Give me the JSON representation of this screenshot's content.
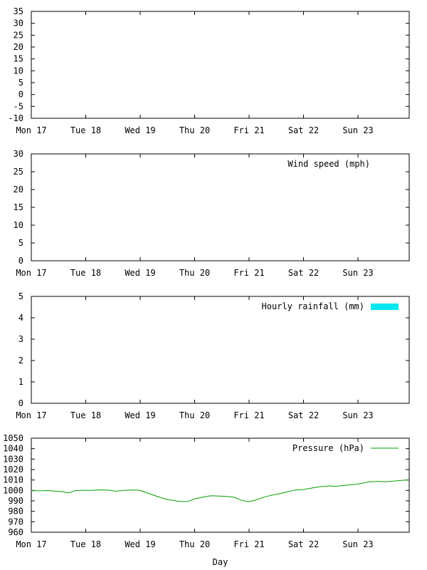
{
  "chart_data": [
    {
      "type": "line",
      "title": "",
      "xlabel": "",
      "ylabel": "",
      "ylim": [
        -10,
        35
      ],
      "yticks": [
        -10,
        -5,
        0,
        5,
        10,
        15,
        20,
        25,
        30,
        35
      ],
      "x_categories": [
        "Mon 17",
        "Tue 18",
        "Wed 19",
        "Thu 20",
        "Fri 21",
        "Sat 22",
        "Sun 23"
      ],
      "series": []
    },
    {
      "type": "line",
      "title": "",
      "xlabel": "",
      "ylabel": "",
      "ylim": [
        0,
        30
      ],
      "yticks": [
        0,
        5,
        10,
        15,
        20,
        25,
        30
      ],
      "x_categories": [
        "Mon 17",
        "Tue 18",
        "Wed 19",
        "Thu 20",
        "Fri 21",
        "Sat 22",
        "Sun 23"
      ],
      "legend_position": "top-right",
      "series": [
        {
          "name": "Wind speed (mph)",
          "color": "",
          "points": []
        }
      ]
    },
    {
      "type": "bar",
      "title": "",
      "xlabel": "",
      "ylabel": "",
      "ylim": [
        0,
        5
      ],
      "yticks": [
        0,
        1,
        2,
        3,
        4,
        5
      ],
      "x_categories": [
        "Mon 17",
        "Tue 18",
        "Wed 19",
        "Thu 20",
        "Fri 21",
        "Sat 22",
        "Sun 23"
      ],
      "legend_position": "top-right",
      "series": [
        {
          "name": "Hourly rainfall (mm)",
          "color": "#00e5ee",
          "legend_style": "box",
          "points": []
        }
      ]
    },
    {
      "type": "line",
      "title": "",
      "xlabel": "Day",
      "ylabel": "",
      "ylim": [
        960,
        1050
      ],
      "yticks": [
        960,
        970,
        980,
        990,
        1000,
        1010,
        1020,
        1030,
        1040,
        1050
      ],
      "x_categories": [
        "Mon 17",
        "Tue 18",
        "Wed 19",
        "Thu 20",
        "Fri 21",
        "Sat 22",
        "Sun 23"
      ],
      "legend_position": "top-right",
      "series": [
        {
          "name": "Pressure (hPa)",
          "color": "#00a000",
          "legend_style": "line",
          "points": [
            [
              0.0,
              999.8
            ],
            [
              0.3,
              999.6
            ],
            [
              0.6,
              999.9
            ],
            [
              0.9,
              999.3
            ],
            [
              1.15,
              998.8
            ],
            [
              1.3,
              997.8
            ],
            [
              1.45,
              998.2
            ],
            [
              1.6,
              999.8
            ],
            [
              1.9,
              1000.0
            ],
            [
              2.2,
              1000.1
            ],
            [
              2.5,
              1000.5
            ],
            [
              2.8,
              1000.4
            ],
            [
              3.1,
              999.3
            ],
            [
              3.4,
              1000.0
            ],
            [
              3.7,
              1000.4
            ],
            [
              4.0,
              1000.0
            ],
            [
              4.3,
              997.2
            ],
            [
              4.6,
              994.5
            ],
            [
              4.9,
              992.0
            ],
            [
              5.2,
              990.4
            ],
            [
              5.5,
              989.3
            ],
            [
              5.75,
              989.4
            ],
            [
              6.0,
              991.9
            ],
            [
              6.3,
              993.6
            ],
            [
              6.6,
              995.0
            ],
            [
              6.9,
              994.6
            ],
            [
              7.2,
              994.2
            ],
            [
              7.45,
              993.5
            ],
            [
              7.7,
              990.8
            ],
            [
              7.95,
              989.2
            ],
            [
              8.2,
              990.4
            ],
            [
              8.5,
              993.2
            ],
            [
              8.8,
              995.3
            ],
            [
              9.1,
              996.8
            ],
            [
              9.4,
              998.6
            ],
            [
              9.7,
              1000.4
            ],
            [
              10.0,
              1000.9
            ],
            [
              10.3,
              1002.3
            ],
            [
              10.6,
              1003.6
            ],
            [
              10.9,
              1004.3
            ],
            [
              11.2,
              1004.0
            ],
            [
              11.5,
              1004.9
            ],
            [
              11.8,
              1005.5
            ],
            [
              12.1,
              1006.5
            ],
            [
              12.4,
              1008.2
            ],
            [
              12.7,
              1008.7
            ],
            [
              13.0,
              1008.3
            ],
            [
              13.3,
              1008.9
            ],
            [
              13.6,
              1009.6
            ],
            [
              13.9,
              1010.1
            ]
          ]
        }
      ]
    }
  ]
}
